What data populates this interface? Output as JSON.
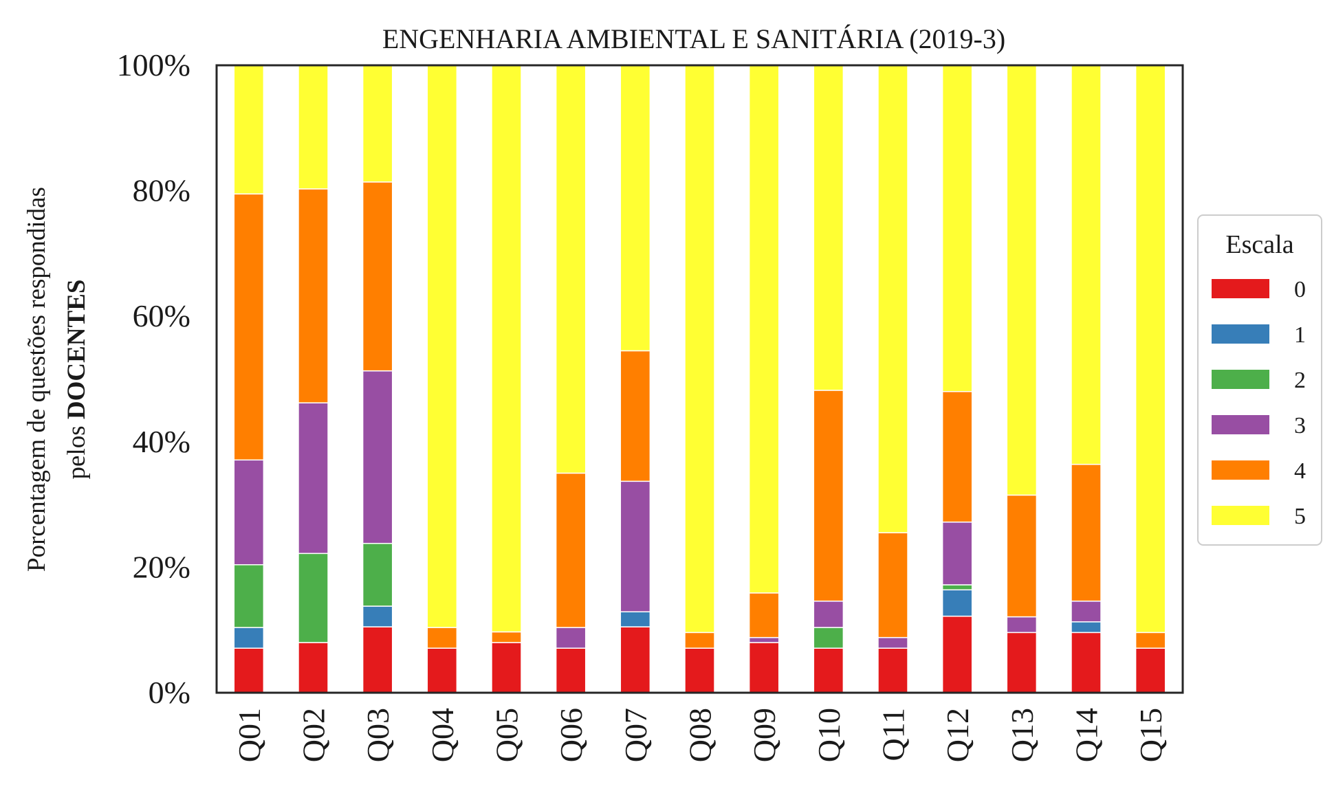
{
  "chart_data": {
    "type": "bar",
    "stacked": true,
    "title": "ENGENHARIA AMBIENTAL E SANITÁRIA (2019-3)",
    "ylabel_line1": "Porcentagem de questões respondidas",
    "ylabel_line2_prefix": "pelos ",
    "ylabel_line2_bold": "DOCENTES",
    "ylim": [
      0,
      100
    ],
    "yticks": [
      "0%",
      "20%",
      "40%",
      "60%",
      "80%",
      "100%"
    ],
    "ytick_values": [
      0,
      20,
      40,
      60,
      80,
      100
    ],
    "categories": [
      "Q01",
      "Q02",
      "Q03",
      "Q04",
      "Q05",
      "Q06",
      "Q07",
      "Q08",
      "Q09",
      "Q10",
      "Q11",
      "Q12",
      "Q13",
      "Q14",
      "Q15"
    ],
    "legend_title": "Escala",
    "legend_position": "right",
    "grid": false,
    "series": [
      {
        "name": "0",
        "color": "#e41a1c",
        "values": [
          7.1,
          8.0,
          10.5,
          7.1,
          8.0,
          7.1,
          10.5,
          7.1,
          8.0,
          7.1,
          7.1,
          12.2,
          9.6,
          9.6,
          7.1
        ]
      },
      {
        "name": "1",
        "color": "#377eb8",
        "values": [
          3.3,
          0,
          3.3,
          0,
          0,
          0,
          2.4,
          0,
          0,
          0,
          0,
          4.2,
          0,
          1.7,
          0
        ]
      },
      {
        "name": "2",
        "color": "#4daf4a",
        "values": [
          10.0,
          14.2,
          10.0,
          0,
          0,
          0,
          0,
          0,
          0,
          3.3,
          0,
          0.8,
          0,
          0,
          0
        ]
      },
      {
        "name": "3",
        "color": "#984ea3",
        "values": [
          16.7,
          24.0,
          27.5,
          0,
          0,
          3.3,
          20.8,
          0,
          0.8,
          4.2,
          1.7,
          10.0,
          2.5,
          3.3,
          0
        ]
      },
      {
        "name": "4",
        "color": "#ff7f00",
        "values": [
          42.4,
          34.1,
          30.1,
          3.3,
          1.7,
          24.6,
          20.8,
          2.5,
          7.1,
          33.6,
          16.7,
          20.8,
          19.4,
          21.8,
          2.5
        ]
      },
      {
        "name": "5",
        "color": "#ffff33",
        "values": [
          20.5,
          19.7,
          18.6,
          89.6,
          90.3,
          65.0,
          45.5,
          90.4,
          84.1,
          51.8,
          74.5,
          52.0,
          68.5,
          63.6,
          90.4
        ]
      }
    ]
  }
}
